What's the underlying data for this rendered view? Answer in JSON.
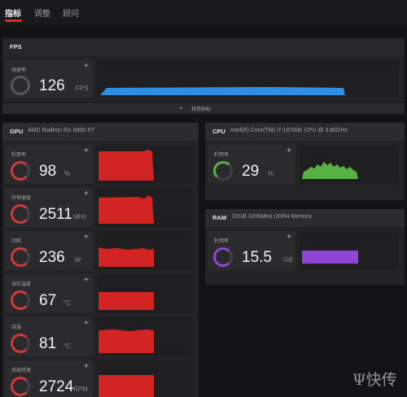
{
  "tabs": [
    "指标",
    "调整",
    "顾问"
  ],
  "fps": {
    "title": "FPS",
    "card": {
      "label": "帧速率",
      "value": "126",
      "unit": "FPS"
    },
    "more_label": "其他指标"
  },
  "gpu": {
    "title": "GPU",
    "model": "AMD Radeon RX 6900 XT",
    "cards": [
      {
        "label": "利用率",
        "value": "98",
        "unit": "%"
      },
      {
        "label": "时钟速度",
        "value": "2511",
        "unit": "MHz"
      },
      {
        "label": "功耗",
        "value": "236",
        "unit": "W"
      },
      {
        "label": "当前温度",
        "value": "67",
        "unit": "°C"
      },
      {
        "label": "结温",
        "value": "81",
        "unit": "°C"
      },
      {
        "label": "风扇转速",
        "value": "2724",
        "unit": "RPM"
      }
    ]
  },
  "cpu": {
    "title": "CPU",
    "model": "Intel(R) Core(TM) i7-10700K CPU @ 3.80GHz",
    "card": {
      "label": "利用率",
      "value": "29",
      "unit": "%"
    }
  },
  "ram": {
    "title": "RAM",
    "model": "32GB 3200MHz DDR4 Memory",
    "card": {
      "label": "利用率",
      "value": "15.5",
      "unit": "GB"
    }
  },
  "colors": {
    "fps_graph": "#2f8fe0",
    "gpu_graph": "#d32424",
    "cpu_graph": "#57b040",
    "ram_graph": "#9044d4",
    "accent": "#d32a2a"
  },
  "watermark": "Ψ快传"
}
